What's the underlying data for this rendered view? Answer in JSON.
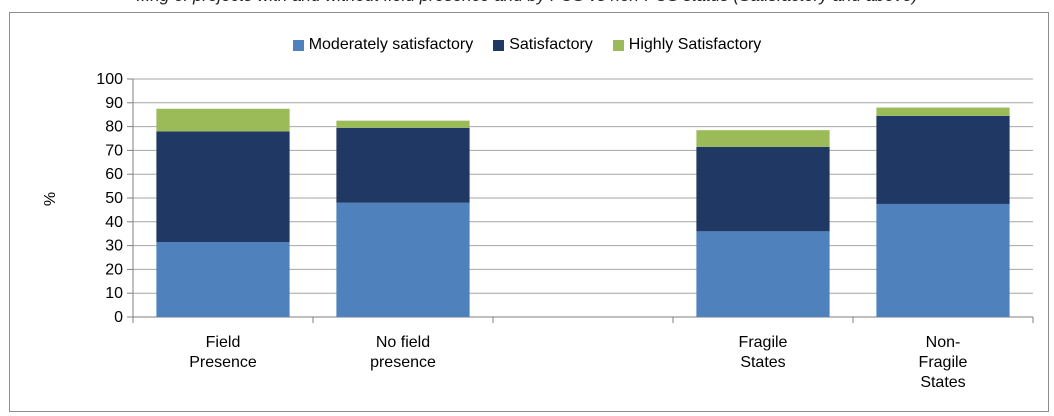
{
  "title": "...ng of projects with and without field presence and by FCS vs non-FCS status (Satisfactory and above)",
  "legend": [
    {
      "label": "Moderately satisfactory",
      "color": "#4f81bd"
    },
    {
      "label": "Satisfactory",
      "color": "#1f3864"
    },
    {
      "label": "Highly Satisfactory",
      "color": "#9bbb59"
    }
  ],
  "chart_data": {
    "type": "bar",
    "stacked": true,
    "ylabel": "%",
    "ylim": [
      0,
      100
    ],
    "yticks": [
      0,
      10,
      20,
      30,
      40,
      50,
      60,
      70,
      80,
      90,
      100
    ],
    "grid": true,
    "legend_position": "top",
    "categories": [
      "Field\nPresence",
      "No field\npresence",
      "",
      "Fragile\nStates",
      "Non-\nFragile\nStates"
    ],
    "series": [
      {
        "name": "Moderately satisfactory",
        "color": "#4f81bd",
        "values": [
          31.5,
          48,
          null,
          36,
          47.5
        ]
      },
      {
        "name": "Satisfactory",
        "color": "#1f3864",
        "values": [
          46.5,
          31.5,
          null,
          35.5,
          37
        ]
      },
      {
        "name": "Highly Satisfactory",
        "color": "#9bbb59",
        "values": [
          9.5,
          3,
          null,
          7,
          3.5
        ]
      }
    ]
  }
}
